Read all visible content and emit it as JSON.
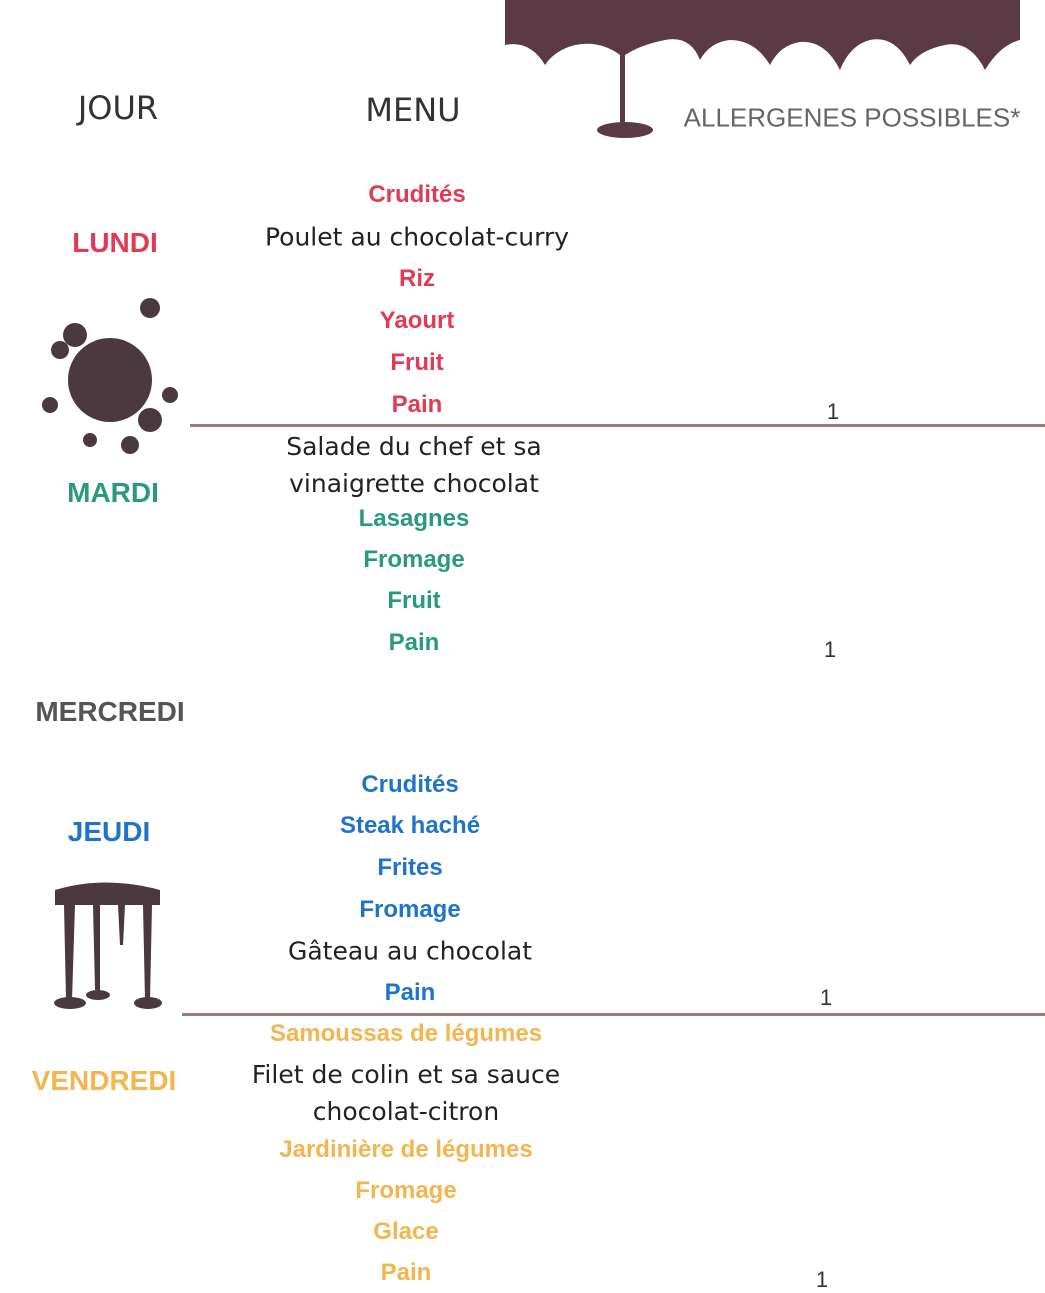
{
  "header": {
    "day": "JOUR",
    "menu": "MENU",
    "allergens": "ALLERGENES POSSIBLES*"
  },
  "days": [
    {
      "name": "LUNDI",
      "color": "#e23a55",
      "items": [
        {
          "text": "Crudités",
          "color": "#e23a55"
        },
        {
          "text": "Poulet au chocolat-curry",
          "color": "#222222"
        },
        {
          "text": "Riz",
          "color": "#e23a55"
        },
        {
          "text": "Yaourt",
          "color": "#e23a55"
        },
        {
          "text": "Fruit",
          "color": "#e23a55"
        },
        {
          "text": "Pain",
          "color": "#e23a55"
        }
      ],
      "allergens": 1
    },
    {
      "name": "MARDI",
      "color": "#2a9a7c",
      "items": [
        {
          "text": "Salade du chef et sa vinaigrette chocolat",
          "color": "#222222"
        },
        {
          "text": "Lasagnes",
          "color": "#2a9a7c"
        },
        {
          "text": "Fromage",
          "color": "#2a9a7c"
        },
        {
          "text": "Fruit",
          "color": "#2a9a7c"
        },
        {
          "text": "Pain",
          "color": "#2a9a7c"
        }
      ],
      "allergens": 1
    },
    {
      "name": "MERCREDI",
      "color": "#555555",
      "items": []
    },
    {
      "name": "JEUDI",
      "color": "#1f74c9",
      "items": [
        {
          "text": "Crudités",
          "color": "#1f74c9"
        },
        {
          "text": "Steak haché",
          "color": "#1f74c9"
        },
        {
          "text": "Frites",
          "color": "#1f74c9"
        },
        {
          "text": "Fromage",
          "color": "#1f74c9"
        },
        {
          "text": "Gâteau au chocolat",
          "color": "#222222"
        },
        {
          "text": "Pain",
          "color": "#1f74c9"
        }
      ],
      "allergens": 1
    },
    {
      "name": "VENDREDI",
      "color": "#f2b54f",
      "items": [
        {
          "text": "Samoussas de légumes",
          "color": "#f2b54f"
        },
        {
          "text": "Filet de colin et sa sauce chocolat-citron",
          "color": "#222222"
        },
        {
          "text": "Jardinière de légumes",
          "color": "#f2b54f"
        },
        {
          "text": "Fromage",
          "color": "#f2b54f"
        },
        {
          "text": "Glace",
          "color": "#f2b54f"
        },
        {
          "text": "Pain",
          "color": "#f2b54f"
        }
      ],
      "allergens": 1
    }
  ]
}
